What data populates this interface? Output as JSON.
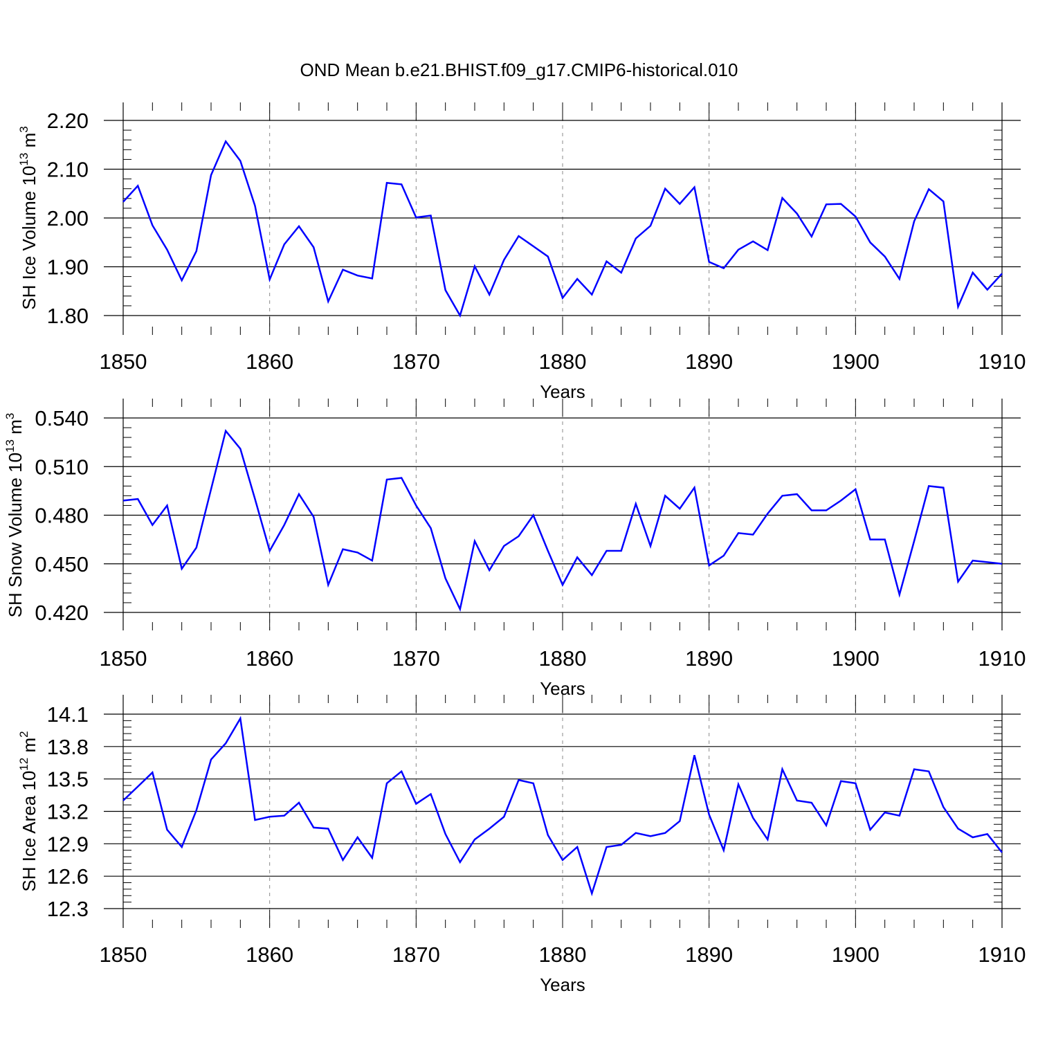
{
  "title": "OND Mean b.e21.BHIST.f09_g17.CMIP6-historical.010",
  "colors": {
    "series": "#0000ff",
    "axis": "#000000",
    "grid": "#888888"
  },
  "chart_data": [
    {
      "type": "line",
      "title": "OND Mean b.e21.BHIST.f09_g17.CMIP6-historical.010",
      "xlabel": "Years",
      "ylabel": {
        "main": "SH Ice Volume 10",
        "exponent": "13",
        "unit": " m",
        "unit_exponent": "3"
      },
      "xlim": [
        1850,
        1910
      ],
      "ylim": [
        1.8,
        2.2
      ],
      "xticks": [
        1850,
        1860,
        1870,
        1880,
        1890,
        1900,
        1910
      ],
      "yticks": [
        "1.80",
        "1.90",
        "2.00",
        "2.10",
        "2.20"
      ],
      "grid": "dashed vertical at major x ticks",
      "x": [
        1850,
        1851,
        1852,
        1853,
        1854,
        1855,
        1856,
        1857,
        1858,
        1859,
        1860,
        1861,
        1862,
        1863,
        1864,
        1865,
        1866,
        1867,
        1868,
        1869,
        1870,
        1871,
        1872,
        1873,
        1874,
        1875,
        1876,
        1877,
        1878,
        1879,
        1880,
        1881,
        1882,
        1883,
        1884,
        1885,
        1886,
        1887,
        1888,
        1889,
        1890,
        1891,
        1892,
        1893,
        1894,
        1895,
        1896,
        1897,
        1898,
        1899,
        1900,
        1901,
        1902,
        1903,
        1904,
        1905,
        1906,
        1907,
        1908,
        1909,
        1910
      ],
      "series": [
        {
          "values": [
            2.033,
            2.066,
            1.985,
            1.935,
            1.872,
            1.932,
            2.088,
            2.157,
            2.117,
            2.025,
            1.874,
            1.946,
            1.983,
            1.94,
            1.829,
            1.894,
            1.882,
            1.876,
            2.072,
            2.069,
            2.001,
            2.005,
            1.852,
            1.8,
            1.901,
            1.843,
            1.914,
            1.963,
            1.942,
            1.921,
            1.836,
            1.875,
            1.843,
            1.911,
            1.888,
            1.958,
            1.984,
            2.06,
            2.029,
            2.063,
            1.91,
            1.897,
            1.935,
            1.952,
            1.934,
            2.041,
            2.009,
            1.962,
            2.028,
            2.029,
            2.003,
            1.95,
            1.921,
            1.875,
            1.993,
            2.059,
            2.034,
            1.818,
            1.888,
            1.853,
            1.886
          ]
        }
      ]
    },
    {
      "type": "line",
      "xlabel": "Years",
      "ylabel": {
        "main": "SH Snow Volume 10",
        "exponent": "13",
        "unit": " m",
        "unit_exponent": "3"
      },
      "xlim": [
        1850,
        1910
      ],
      "ylim": [
        0.42,
        0.54
      ],
      "xticks": [
        1850,
        1860,
        1870,
        1880,
        1890,
        1900,
        1910
      ],
      "yticks": [
        "0.420",
        "0.450",
        "0.480",
        "0.510",
        "0.540"
      ],
      "grid": "dashed vertical at major x ticks",
      "x": [
        1850,
        1851,
        1852,
        1853,
        1854,
        1855,
        1856,
        1857,
        1858,
        1859,
        1860,
        1861,
        1862,
        1863,
        1864,
        1865,
        1866,
        1867,
        1868,
        1869,
        1870,
        1871,
        1872,
        1873,
        1874,
        1875,
        1876,
        1877,
        1878,
        1879,
        1880,
        1881,
        1882,
        1883,
        1884,
        1885,
        1886,
        1887,
        1888,
        1889,
        1890,
        1891,
        1892,
        1893,
        1894,
        1895,
        1896,
        1897,
        1898,
        1899,
        1900,
        1901,
        1902,
        1903,
        1904,
        1905,
        1906,
        1907,
        1908,
        1909,
        1910
      ],
      "series": [
        {
          "values": [
            0.489,
            0.49,
            0.474,
            0.486,
            0.447,
            0.46,
            0.496,
            0.532,
            0.521,
            0.49,
            0.458,
            0.474,
            0.493,
            0.479,
            0.437,
            0.459,
            0.457,
            0.452,
            0.502,
            0.503,
            0.486,
            0.472,
            0.441,
            0.422,
            0.464,
            0.446,
            0.461,
            0.467,
            0.48,
            0.458,
            0.437,
            0.454,
            0.443,
            0.458,
            0.458,
            0.487,
            0.461,
            0.492,
            0.484,
            0.497,
            0.449,
            0.455,
            0.469,
            0.468,
            0.481,
            0.492,
            0.493,
            0.483,
            0.483,
            0.489,
            0.496,
            0.465,
            0.465,
            0.431,
            0.464,
            0.498,
            0.497,
            0.439,
            0.452,
            0.451,
            0.45
          ]
        }
      ]
    },
    {
      "type": "line",
      "xlabel": "Years",
      "ylabel": {
        "main": "SH Ice Area 10",
        "exponent": "12",
        "unit": " m",
        "unit_exponent": "2"
      },
      "xlim": [
        1850,
        1910
      ],
      "ylim": [
        12.3,
        14.1
      ],
      "xticks": [
        1850,
        1860,
        1870,
        1880,
        1890,
        1900,
        1910
      ],
      "yticks": [
        "12.3",
        "12.6",
        "12.9",
        "13.2",
        "13.5",
        "13.8",
        "14.1"
      ],
      "grid": "dashed vertical at major x ticks",
      "x": [
        1850,
        1851,
        1852,
        1853,
        1854,
        1855,
        1856,
        1857,
        1858,
        1859,
        1860,
        1861,
        1862,
        1863,
        1864,
        1865,
        1866,
        1867,
        1868,
        1869,
        1870,
        1871,
        1872,
        1873,
        1874,
        1875,
        1876,
        1877,
        1878,
        1879,
        1880,
        1881,
        1882,
        1883,
        1884,
        1885,
        1886,
        1887,
        1888,
        1889,
        1890,
        1891,
        1892,
        1893,
        1894,
        1895,
        1896,
        1897,
        1898,
        1899,
        1900,
        1901,
        1902,
        1903,
        1904,
        1905,
        1906,
        1907,
        1908,
        1909,
        1910
      ],
      "series": [
        {
          "values": [
            13.3,
            13.43,
            13.56,
            13.03,
            12.87,
            13.21,
            13.68,
            13.83,
            14.06,
            13.12,
            13.15,
            13.16,
            13.28,
            13.05,
            13.04,
            12.75,
            12.96,
            12.77,
            13.46,
            13.57,
            13.27,
            13.36,
            12.99,
            12.73,
            12.94,
            13.04,
            13.15,
            13.49,
            13.46,
            12.98,
            12.75,
            12.87,
            12.44,
            12.87,
            12.89,
            13.0,
            12.97,
            13.0,
            13.11,
            13.72,
            13.17,
            12.84,
            13.45,
            13.14,
            12.94,
            13.59,
            13.3,
            13.28,
            13.07,
            13.48,
            13.46,
            13.03,
            13.19,
            13.16,
            13.59,
            13.57,
            13.24,
            13.04,
            12.96,
            12.99,
            12.82
          ]
        }
      ]
    }
  ]
}
